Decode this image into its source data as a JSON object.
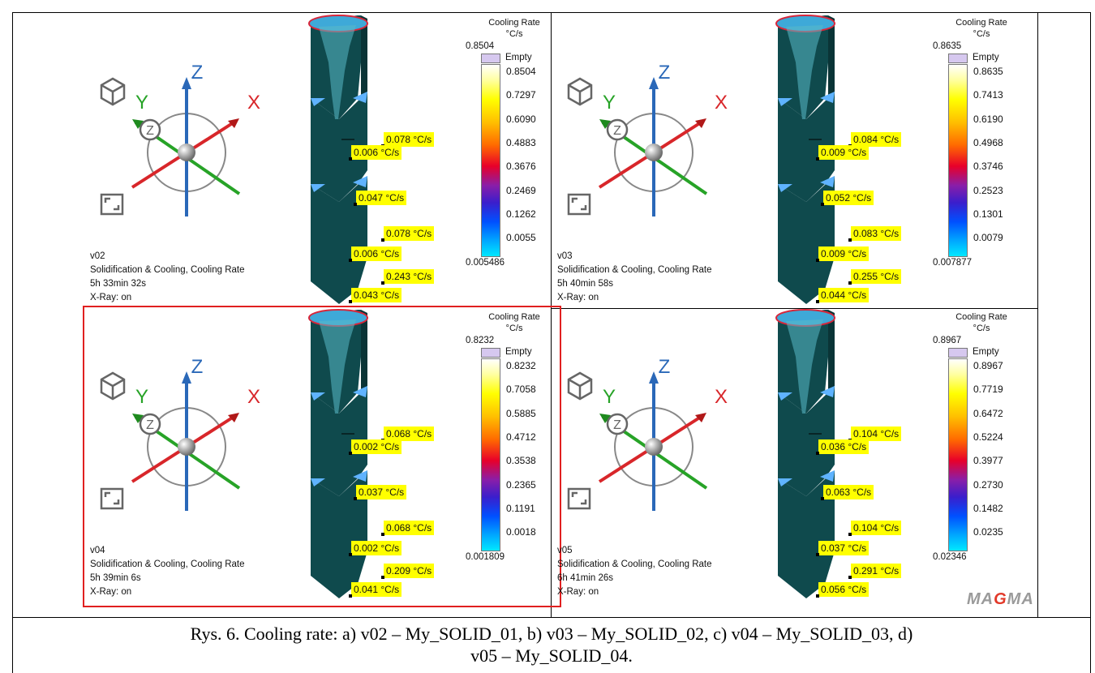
{
  "panels": [
    {
      "id": "v02",
      "version": "v02",
      "analysis": "Solidification & Cooling, Cooling Rate",
      "time": "5h 33min 32s",
      "xray": "X-Ray: on",
      "legend": {
        "title": "Cooling Rate",
        "unit": "°C/s",
        "max": "0.8504",
        "empty": "Empty",
        "ticks": [
          "0.8504",
          "0.7297",
          "0.6090",
          "0.4883",
          "0.3676",
          "0.2469",
          "0.1262",
          "0.0055"
        ],
        "min": "0.005486"
      },
      "tags": [
        "0.078 °C/s",
        "0.006 °C/s",
        "0.047 °C/s",
        "0.078 °C/s",
        "0.006 °C/s",
        "0.243 °C/s",
        "0.043 °C/s"
      ],
      "selected": false
    },
    {
      "id": "v03",
      "version": "v03",
      "analysis": "Solidification & Cooling, Cooling Rate",
      "time": "5h 40min 58s",
      "xray": "X-Ray: on",
      "legend": {
        "title": "Cooling Rate",
        "unit": "°C/s",
        "max": "0.8635",
        "empty": "Empty",
        "ticks": [
          "0.8635",
          "0.7413",
          "0.6190",
          "0.4968",
          "0.3746",
          "0.2523",
          "0.1301",
          "0.0079"
        ],
        "min": "0.007877"
      },
      "tags": [
        "0.084 °C/s",
        "0.009 °C/s",
        "0.052 °C/s",
        "0.083 °C/s",
        "0.009 °C/s",
        "0.255 °C/s",
        "0.044 °C/s"
      ],
      "selected": false
    },
    {
      "id": "v04",
      "version": "v04",
      "analysis": "Solidification & Cooling, Cooling Rate",
      "time": "5h 39min 6s",
      "xray": "X-Ray: on",
      "legend": {
        "title": "Cooling Rate",
        "unit": "°C/s",
        "max": "0.8232",
        "empty": "Empty",
        "ticks": [
          "0.8232",
          "0.7058",
          "0.5885",
          "0.4712",
          "0.3538",
          "0.2365",
          "0.1191",
          "0.0018"
        ],
        "min": "0.001809"
      },
      "tags": [
        "0.068 °C/s",
        "0.002 °C/s",
        "0.037 °C/s",
        "0.068 °C/s",
        "0.002 °C/s",
        "0.209 °C/s",
        "0.041 °C/s"
      ],
      "selected": true
    },
    {
      "id": "v05",
      "version": "v05",
      "analysis": "Solidification & Cooling, Cooling Rate",
      "time": "6h 41min 26s",
      "xray": "X-Ray: on",
      "legend": {
        "title": "Cooling Rate",
        "unit": "°C/s",
        "max": "0.8967",
        "empty": "Empty",
        "ticks": [
          "0.8967",
          "0.7719",
          "0.6472",
          "0.5224",
          "0.3977",
          "0.2730",
          "0.1482",
          "0.0235"
        ],
        "min": "0.02346"
      },
      "tags": [
        "0.104 °C/s",
        "0.036 °C/s",
        "0.063 °C/s",
        "0.104 °C/s",
        "0.037 °C/s",
        "0.291 °C/s",
        "0.056 °C/s"
      ],
      "selected": false
    }
  ],
  "axis_labels": {
    "x": "X",
    "y": "Y",
    "z": "Z"
  },
  "colors": {
    "casting": "#0f4a4d",
    "axis_x": "#d8262a",
    "axis_y": "#27a327",
    "axis_z": "#2a68b8",
    "tag_bg": "#ffff00",
    "selection": "#e02020"
  },
  "icons": [
    "cube-view-icon",
    "fit-view-icon",
    "rotate-z-icon"
  ],
  "logo": {
    "left": "MA",
    "mid": "G",
    "right": "MA"
  },
  "caption": {
    "line1": "Rys. 6. Cooling rate: a) v02 – My_SOLID_01, b) v03 – My_SOLID_02, c) v04 – My_SOLID_03, d)",
    "line2": "v05 – My_SOLID_04."
  }
}
